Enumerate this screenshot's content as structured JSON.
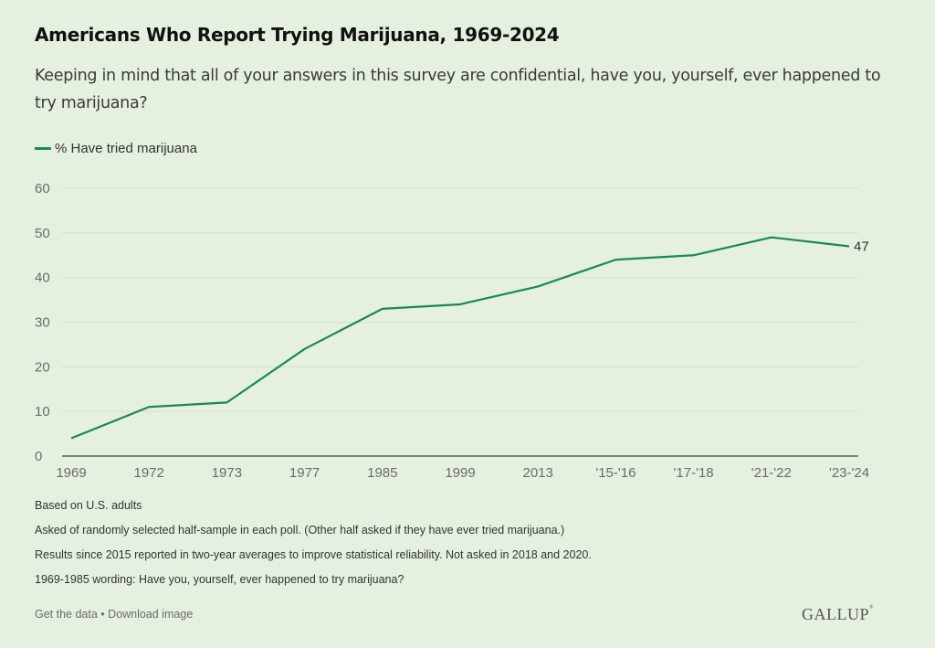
{
  "header": {
    "title": "Americans Who Report Trying Marijuana, 1969-2024",
    "subtitle": "Keeping in mind that all of your answers in this survey are confidential, have you, yourself, ever happened to try marijuana?"
  },
  "colors": {
    "background": "#e5f0e0",
    "series": "#1a8a4f",
    "grid": "#d4dfd0",
    "axis": "#7a857a"
  },
  "chart_data": {
    "type": "line",
    "title": "Americans Who Report Trying Marijuana, 1969-2024",
    "xlabel": "",
    "ylabel": "",
    "categories": [
      "1969",
      "1972",
      "1973",
      "1977",
      "1985",
      "1999",
      "2013",
      "'15-'16",
      "'17-'18",
      "'21-'22",
      "'23-'24"
    ],
    "series": [
      {
        "name": "% Have tried marijuana",
        "values": [
          4,
          11,
          12,
          24,
          33,
          34,
          38,
          44,
          45,
          49,
          47
        ]
      }
    ],
    "ylim": [
      0,
      60
    ],
    "yticks": [
      0,
      10,
      20,
      30,
      40,
      50,
      60
    ],
    "grid": true,
    "legend": "top-left",
    "end_label": "47"
  },
  "notes": [
    "Based on U.S. adults",
    "Asked of randomly selected half-sample in each poll. (Other half asked if they have ever tried marijuana.)",
    "Results since 2015 reported in two-year averages to improve statistical reliability. Not asked in 2018 and 2020.",
    "1969-1985 wording: Have you, yourself, ever happened to try marijuana?"
  ],
  "footer": {
    "get_data": "Get the data",
    "separator": "•",
    "download": "Download image",
    "logo": "GALLUP",
    "logo_mark": "®"
  }
}
